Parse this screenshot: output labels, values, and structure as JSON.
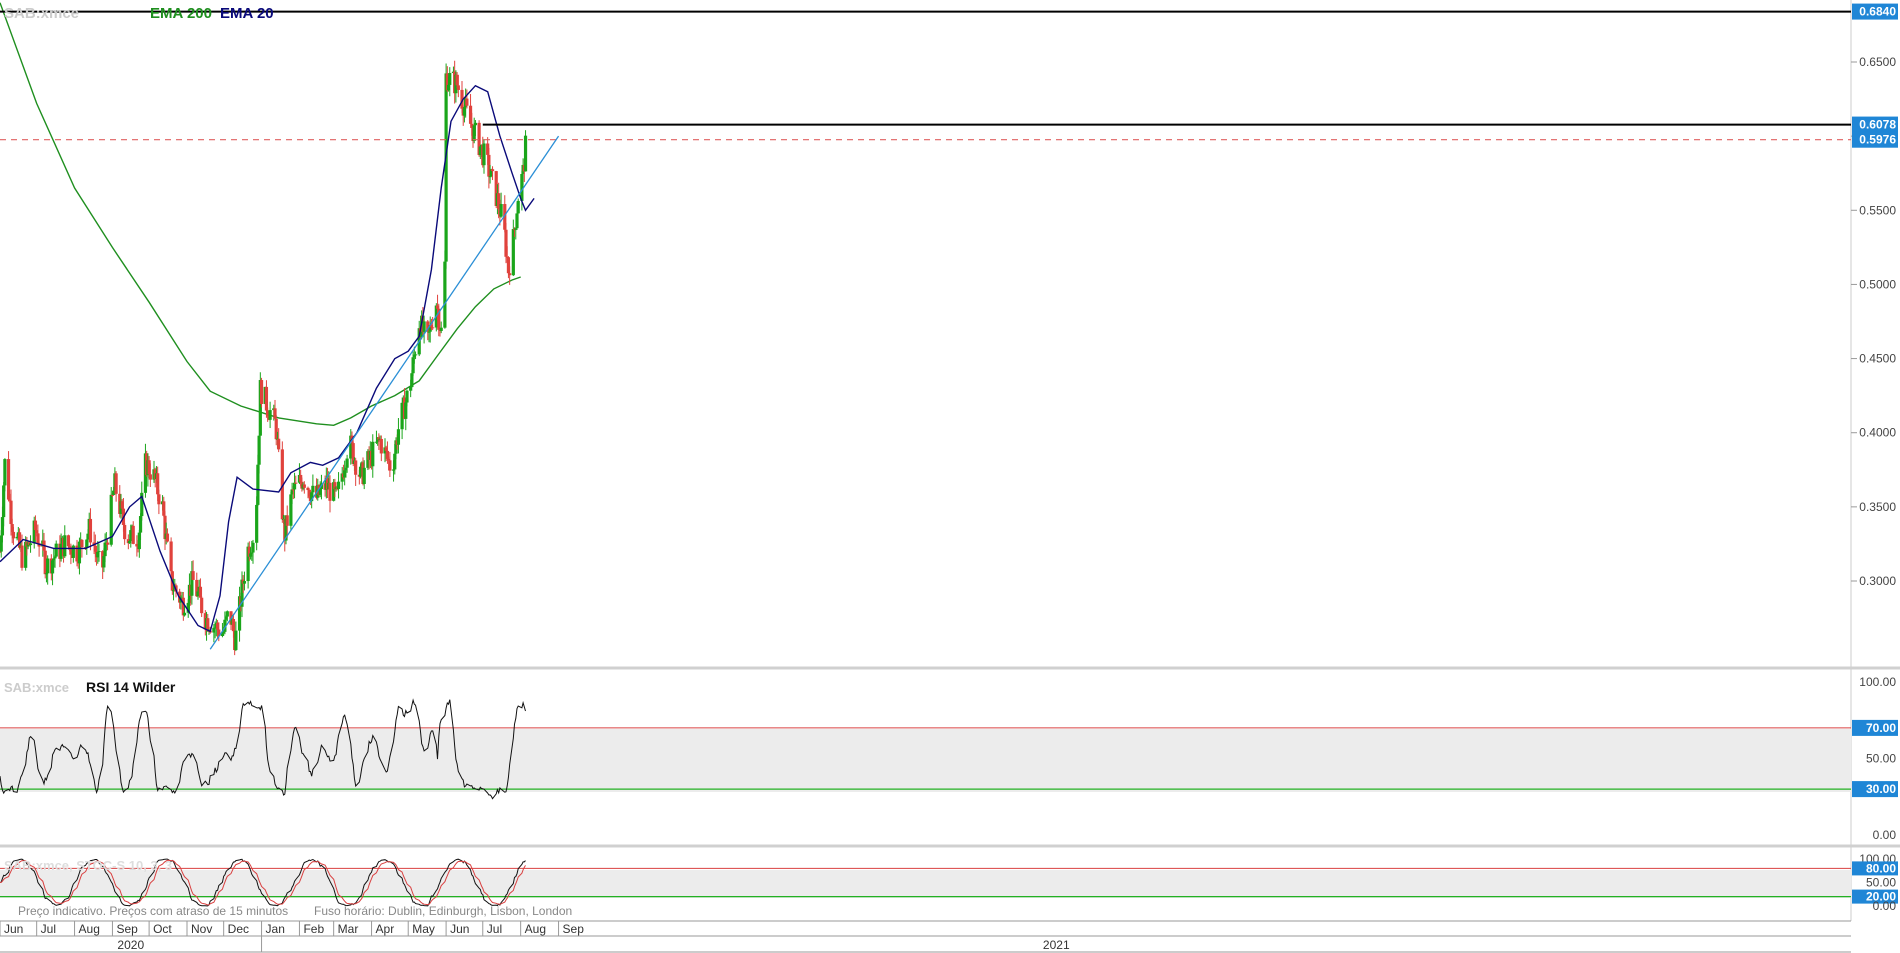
{
  "header": {
    "symbol": "SAB:xmce",
    "ema200_label": "EMA 200",
    "ema20_label": "EMA 20",
    "ema200_color": "#1f8f1f",
    "ema20_color": "#0a0a7a"
  },
  "rsi_panel": {
    "symbol": "SAB:xmce",
    "label": "RSI 14 Wilder",
    "ticks": [
      "100.00",
      "70.00",
      "50.00",
      "30.00",
      "0.00"
    ],
    "upper": 70,
    "lower": 30
  },
  "stoch_panel": {
    "label": "SAB:xmce, STOC-S 10, 3, 3",
    "ticks": [
      "100.00",
      "80.00",
      "50.00",
      "20.00",
      "0.00"
    ],
    "upper": 80,
    "lower": 20
  },
  "footer": {
    "note": "Preço indicativo. Preços com atraso de 15 minutos",
    "timezone": "Fuso horário: Dublin, Edinburgh, Lisbon, London",
    "months": [
      "Jun",
      "Jul",
      "Aug",
      "Sep",
      "Oct",
      "Nov",
      "Dec",
      "Jan",
      "Feb",
      "Mar",
      "Apr",
      "May",
      "Jun",
      "Jul",
      "Aug",
      "Sep"
    ],
    "years": [
      "2020",
      "2021"
    ]
  },
  "price_axis": {
    "ticks": [
      "0.6500",
      "0.6000",
      "0.5500",
      "0.5000",
      "0.4500",
      "0.4000",
      "0.3500",
      "0.3000"
    ],
    "labels": [
      {
        "text": "0.6840",
        "value": 0.684
      },
      {
        "text": "0.6078",
        "value": 0.6078
      },
      {
        "text": "0.5976",
        "value": 0.5976
      }
    ]
  },
  "colors": {
    "up": "#1aa51a",
    "down": "#e0423c",
    "ema200": "#1f8f1f",
    "ema20": "#0a0a7a",
    "trendline": "#2b8fd6",
    "dashed": "#e06060",
    "label_bg": "#1f86d6",
    "rsi_upper": "#d94040",
    "rsi_lower": "#22b122"
  },
  "chart_data": {
    "type": "candlestick",
    "title": "SAB:xmce",
    "ylim": [
      0.255,
      0.688
    ],
    "x_range": [
      "2020-06-01",
      "2021-09-30"
    ],
    "series": [
      {
        "name": "EMA 200",
        "points": [
          [
            "2020-06-01",
            0.69
          ],
          [
            "2020-07-01",
            0.622
          ],
          [
            "2020-08-01",
            0.565
          ],
          [
            "2020-09-01",
            0.525
          ],
          [
            "2020-10-01",
            0.488
          ],
          [
            "2020-11-01",
            0.448
          ],
          [
            "2020-11-20",
            0.428
          ],
          [
            "2020-12-15",
            0.418
          ],
          [
            "2021-01-15",
            0.41
          ],
          [
            "2021-02-15",
            0.406
          ],
          [
            "2021-03-01",
            0.405
          ],
          [
            "2021-03-15",
            0.41
          ],
          [
            "2021-04-01",
            0.418
          ],
          [
            "2021-04-20",
            0.425
          ],
          [
            "2021-05-10",
            0.435
          ],
          [
            "2021-05-25",
            0.452
          ],
          [
            "2021-06-10",
            0.47
          ],
          [
            "2021-06-25",
            0.485
          ],
          [
            "2021-07-10",
            0.497
          ],
          [
            "2021-07-25",
            0.503
          ],
          [
            "2021-08-01",
            0.505
          ]
        ]
      },
      {
        "name": "EMA 20",
        "points": [
          [
            "2020-06-01",
            0.313
          ],
          [
            "2020-06-20",
            0.328
          ],
          [
            "2020-07-15",
            0.322
          ],
          [
            "2020-08-10",
            0.322
          ],
          [
            "2020-09-01",
            0.33
          ],
          [
            "2020-09-15",
            0.35
          ],
          [
            "2020-09-25",
            0.357
          ],
          [
            "2020-10-10",
            0.32
          ],
          [
            "2020-10-25",
            0.29
          ],
          [
            "2020-11-10",
            0.27
          ],
          [
            "2020-11-20",
            0.266
          ],
          [
            "2020-11-28",
            0.29
          ],
          [
            "2020-12-05",
            0.34
          ],
          [
            "2020-12-12",
            0.37
          ],
          [
            "2020-12-25",
            0.362
          ],
          [
            "2021-01-15",
            0.36
          ],
          [
            "2021-01-25",
            0.373
          ],
          [
            "2021-02-10",
            0.38
          ],
          [
            "2021-02-20",
            0.378
          ],
          [
            "2021-03-05",
            0.383
          ],
          [
            "2021-03-20",
            0.4
          ],
          [
            "2021-04-05",
            0.43
          ],
          [
            "2021-04-20",
            0.45
          ],
          [
            "2021-05-01",
            0.455
          ],
          [
            "2021-05-10",
            0.465
          ],
          [
            "2021-05-20",
            0.51
          ],
          [
            "2021-05-28",
            0.565
          ],
          [
            "2021-06-05",
            0.61
          ],
          [
            "2021-06-15",
            0.625
          ],
          [
            "2021-06-25",
            0.634
          ],
          [
            "2021-07-05",
            0.63
          ],
          [
            "2021-07-15",
            0.6
          ],
          [
            "2021-07-25",
            0.575
          ],
          [
            "2021-08-01",
            0.558
          ],
          [
            "2021-08-05",
            0.55
          ],
          [
            "2021-08-12",
            0.558
          ]
        ]
      }
    ],
    "trendline": [
      [
        "2020-11-20",
        0.254
      ],
      [
        "2021-09-01",
        0.6
      ]
    ],
    "horizontal_lines": [
      0.684,
      0.5976,
      0.6078
    ]
  }
}
